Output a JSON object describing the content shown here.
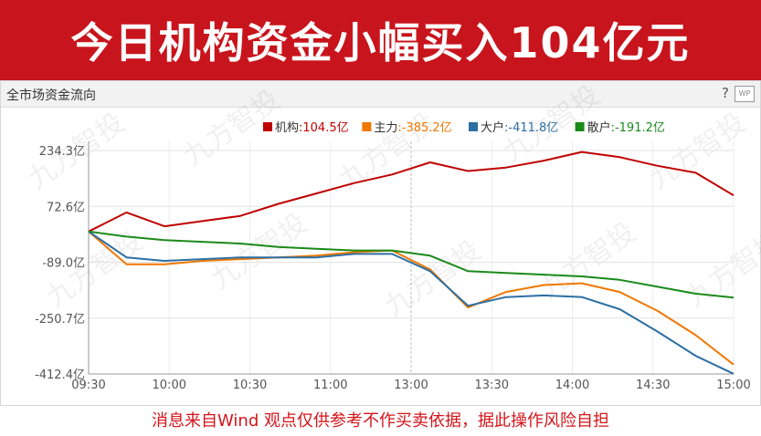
{
  "banner": {
    "title": "今日机构资金小幅买入104亿元"
  },
  "panel": {
    "title": "全市场资金流向",
    "help_icon": "?",
    "wp_icon": "WP"
  },
  "watermark": "九方智投",
  "footer": "消息来自Wind 观点仅供参考不作买卖依据，据此操作风险自担",
  "colors": {
    "banner_bg": "#c8141c",
    "jigou": "#c00000",
    "zhuli": "#f07800",
    "dahu": "#2c6fa3",
    "sanhu": "#1a8a1a"
  },
  "chart_data": {
    "type": "line",
    "x": [
      "09:30",
      "09:45",
      "10:00",
      "10:15",
      "10:30",
      "10:45",
      "11:00",
      "11:15",
      "11:30",
      "13:00",
      "13:15",
      "13:30",
      "13:45",
      "14:00",
      "14:15",
      "14:30",
      "14:45",
      "15:00"
    ],
    "xticks": [
      "09:30",
      "10:00",
      "10:30",
      "11:00",
      "13:00",
      "13:30",
      "14:00",
      "14:30",
      "15:00"
    ],
    "yticks": [
      "234.3亿",
      "72.6亿",
      "-89.0亿",
      "-250.7亿",
      "-412.4亿"
    ],
    "ylim": [
      -412.4,
      234.3
    ],
    "legend": [
      {
        "label": "机构",
        "value": "104.5亿"
      },
      {
        "label": "主力",
        "value": "-385.2亿"
      },
      {
        "label": "大户",
        "value": "-411.8亿"
      },
      {
        "label": "散户",
        "value": "-191.2亿"
      }
    ],
    "series": [
      {
        "name": "机构",
        "values": [
          0,
          55,
          15,
          30,
          45,
          80,
          110,
          140,
          165,
          200,
          175,
          185,
          205,
          230,
          215,
          190,
          170,
          104.5
        ]
      },
      {
        "name": "主力",
        "values": [
          0,
          -95,
          -95,
          -85,
          -80,
          -75,
          -70,
          -60,
          -55,
          -110,
          -220,
          -175,
          -155,
          -150,
          -175,
          -230,
          -300,
          -385.2
        ]
      },
      {
        "name": "大户",
        "values": [
          0,
          -75,
          -85,
          -80,
          -75,
          -75,
          -75,
          -65,
          -65,
          -115,
          -215,
          -190,
          -185,
          -190,
          -225,
          -290,
          -360,
          -411.8
        ]
      },
      {
        "name": "散户",
        "values": [
          0,
          -15,
          -25,
          -30,
          -35,
          -45,
          -50,
          -55,
          -55,
          -70,
          -115,
          -120,
          -125,
          -130,
          -140,
          -160,
          -180,
          -191.2
        ]
      }
    ]
  }
}
